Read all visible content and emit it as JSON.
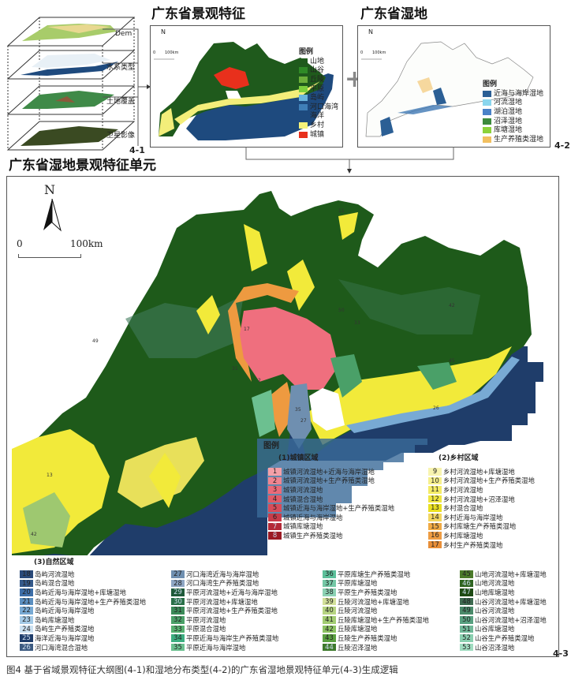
{
  "panel1": {
    "tag": "4-1",
    "layers": [
      "Dem",
      "水系类型",
      "土地覆盖",
      "卫星影像"
    ],
    "title": "广东省景观特征",
    "north": "N",
    "scale_0": "0",
    "scale_km": "100km",
    "legend_title": "图例",
    "legend": [
      {
        "label": "山地",
        "color": "#1f5a1c"
      },
      {
        "label": "山谷",
        "color": "#2f8a26"
      },
      {
        "label": "丘陵",
        "color": "#6cae3a"
      },
      {
        "label": "平原",
        "color": "#7ccf3c"
      },
      {
        "label": "岛屿",
        "color": "#6ab4dc"
      },
      {
        "label": "河口海湾",
        "color": "#3f7fb8"
      },
      {
        "label": "海洋",
        "color": "#1e4a7e"
      },
      {
        "label": "乡村",
        "color": "#f6f27a"
      },
      {
        "label": "城镇",
        "color": "#e8301c"
      }
    ]
  },
  "panel2": {
    "tag": "4-2",
    "title": "广东省湿地",
    "north": "N",
    "scale_0": "0",
    "scale_km": "100km",
    "legend_title": "图例",
    "legend": [
      {
        "label": "近海与海岸湿地",
        "color": "#2b5f95"
      },
      {
        "label": "河流湿地",
        "color": "#8ad6ee"
      },
      {
        "label": "湖泊湿地",
        "color": "#4a82c8"
      },
      {
        "label": "沼泽湿地",
        "color": "#3c8a3c"
      },
      {
        "label": "库塘湿地",
        "color": "#8cd23a"
      },
      {
        "label": "生产养殖类湿地",
        "color": "#f2c060"
      }
    ]
  },
  "plus": "+",
  "main": {
    "title": "广东省湿地景观特征单元",
    "tag": "4-3",
    "north": "N",
    "scale_0": "0",
    "scale_km": "100km",
    "map_labels": [
      "11",
      "42",
      "49",
      "17",
      "2",
      "31",
      "35",
      "27",
      "26",
      "45",
      "13",
      "42",
      "50",
      "33"
    ],
    "legend_title": "图例",
    "urban": {
      "header": "(1)城镇区域",
      "items": [
        {
          "n": "1",
          "label": "城镇河流湿地+近海与海岸湿地",
          "color": "#f4a0a8"
        },
        {
          "n": "2",
          "label": "城镇河流湿地+生产养殖类湿地",
          "color": "#f08490"
        },
        {
          "n": "3",
          "label": "城镇河流湿地",
          "color": "#ea6a78"
        },
        {
          "n": "4",
          "label": "城镇混合湿地",
          "color": "#e25a66"
        },
        {
          "n": "5",
          "label": "城镇近海与海岸湿地+生产养殖类湿地",
          "color": "#d84c5a"
        },
        {
          "n": "6",
          "label": "城镇近海与海岸湿地",
          "color": "#c83c4a"
        },
        {
          "n": "7",
          "label": "城镇库塘湿地",
          "color": "#b42a38"
        },
        {
          "n": "8",
          "label": "城镇生产养殖类湿地",
          "color": "#9c1a24"
        }
      ]
    },
    "rural": {
      "header": "(2)乡村区域",
      "items": [
        {
          "n": "9",
          "label": "乡村河流湿地+库塘湿地",
          "color": "#f8f4b0"
        },
        {
          "n": "10",
          "label": "乡村河流湿地+生产养殖类湿地",
          "color": "#f6f08c"
        },
        {
          "n": "11",
          "label": "乡村河流湿地",
          "color": "#f4ec66"
        },
        {
          "n": "12",
          "label": "乡村河流湿地+沼泽湿地",
          "color": "#efe640"
        },
        {
          "n": "13",
          "label": "乡村混合湿地",
          "color": "#eae020"
        },
        {
          "n": "14",
          "label": "乡村近海与海岸湿地",
          "color": "#f2d660"
        },
        {
          "n": "15",
          "label": "乡村库塘生产养殖类湿地",
          "color": "#f0aa44"
        },
        {
          "n": "16",
          "label": "乡村库塘湿地",
          "color": "#ee9c42"
        },
        {
          "n": "17",
          "label": "乡村生产养殖类湿地",
          "color": "#e88e38"
        }
      ]
    },
    "natural": {
      "header": "(3)自然区域",
      "items": [
        {
          "n": "18",
          "label": "岛屿河流湿地",
          "color": "#2a4a7a"
        },
        {
          "n": "19",
          "label": "岛屿混合湿地",
          "color": "#34598a"
        },
        {
          "n": "20",
          "label": "岛屿近海与海岸湿地+库塘湿地",
          "color": "#3d6ea8"
        },
        {
          "n": "21",
          "label": "岛屿近海与海岸湿地+生产养殖类湿地",
          "color": "#5b8fc0"
        },
        {
          "n": "22",
          "label": "岛屿近海与海岸湿地",
          "color": "#78aad4"
        },
        {
          "n": "23",
          "label": "岛屿库塘湿地",
          "color": "#a4cae6"
        },
        {
          "n": "24",
          "label": "岛屿生产养殖类湿地",
          "color": "#cce2f2"
        },
        {
          "n": "25",
          "label": "海洋近海与海岸湿地",
          "color": "#1f3d6a"
        },
        {
          "n": "26",
          "label": "河口海湾混合湿地",
          "color": "#3c5a80"
        },
        {
          "n": "27",
          "label": "河口海湾近海与海岸湿地",
          "color": "#6f8fb0"
        },
        {
          "n": "28",
          "label": "河口海湾生产养殖类湿地",
          "color": "#8ea6c4"
        },
        {
          "n": "29",
          "label": "平原河流湿地+近海与海岸湿地",
          "color": "#1f5a3a"
        },
        {
          "n": "30",
          "label": "平原河流湿地+库塘湿地",
          "color": "#2a7048"
        },
        {
          "n": "31",
          "label": "平原河流湿地+生产养殖类湿地",
          "color": "#3b8a58"
        },
        {
          "n": "32",
          "label": "平原河流湿地",
          "color": "#4aa068"
        },
        {
          "n": "33",
          "label": "平原混合湿地",
          "color": "#56b070"
        },
        {
          "n": "34",
          "label": "平原近海与海岸生产养殖类湿地",
          "color": "#3cae80"
        },
        {
          "n": "35",
          "label": "平原近海与海岸湿地",
          "color": "#6cc090"
        },
        {
          "n": "36",
          "label": "平原库塘生产养殖类湿地",
          "color": "#5cc09a"
        },
        {
          "n": "37",
          "label": "平原库塘湿地",
          "color": "#74c8a6"
        },
        {
          "n": "38",
          "label": "平原生产养殖类湿地",
          "color": "#8cd2b4"
        },
        {
          "n": "39",
          "label": "丘陵河流湿地+库塘湿地",
          "color": "#d2e09a"
        },
        {
          "n": "40",
          "label": "丘陵河流湿地",
          "color": "#b6d482"
        },
        {
          "n": "41",
          "label": "丘陵库塘湿地+生产养殖类湿地",
          "color": "#a2cc72"
        },
        {
          "n": "42",
          "label": "丘陵库塘湿地",
          "color": "#8cc262"
        },
        {
          "n": "43",
          "label": "丘陵生产养殖类湿地",
          "color": "#5aa040"
        },
        {
          "n": "44",
          "label": "丘陵沼泽湿地",
          "color": "#3e7a2c"
        },
        {
          "n": "45",
          "label": "山地河流湿地+库塘湿地",
          "color": "#4a7a2a"
        },
        {
          "n": "46",
          "label": "山地河流湿地",
          "color": "#2e6420"
        },
        {
          "n": "47",
          "label": "山地库塘湿地",
          "color": "#1e4a14"
        },
        {
          "n": "48",
          "label": "山谷河流湿地+库塘湿地",
          "color": "#3e6a50"
        },
        {
          "n": "49",
          "label": "山谷河流湿地",
          "color": "#4a8a6a"
        },
        {
          "n": "50",
          "label": "山谷河流湿地+沼泽湿地",
          "color": "#58a080"
        },
        {
          "n": "51",
          "label": "山谷库塘湿地",
          "color": "#70b898"
        },
        {
          "n": "52",
          "label": "山谷生产养殖类湿地",
          "color": "#8ad0b0"
        },
        {
          "n": "53",
          "label": "山谷沼泽湿地",
          "color": "#a0dcc0"
        }
      ]
    }
  },
  "caption": "图4  基于省域景观特征大纲图(4-1)和湿地分布类型(4-2)的广东省湿地景观特征单元(4-3)生成逻辑"
}
